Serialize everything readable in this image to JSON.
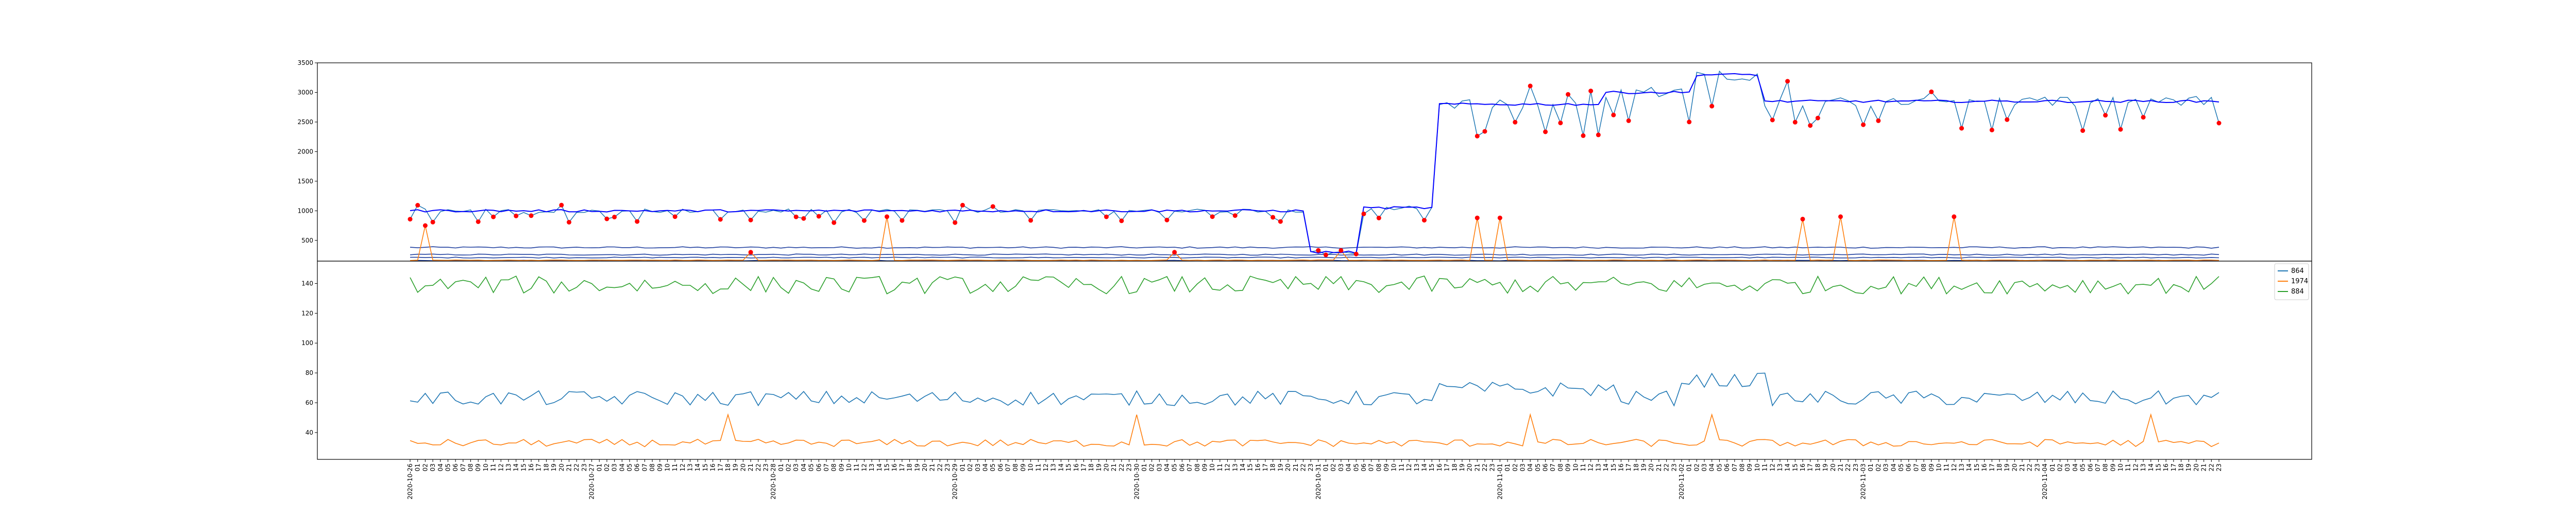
{
  "chart_data": [
    {
      "panel": "top",
      "type": "line",
      "title": "",
      "xlabel": "",
      "ylabel": "",
      "ylim": [
        150,
        3500
      ],
      "yticks": [
        500,
        1000,
        1500,
        2000,
        2500,
        3000,
        3500
      ],
      "grid": false,
      "description_of_series": "light blue raw line with red anomaly markers, dark blue smoothed level line, blue base lines near 150-400, orange line near 150 with spikes to ~700-900",
      "colors": {
        "raw": "#1f77b4",
        "smooth": "#0000ff",
        "base": "#1f3f9f",
        "orange": "#ff7f0e",
        "marker": "#ff0000"
      },
      "segments": [
        {
          "x_start": 0,
          "x_end": 119,
          "level": 1000
        },
        {
          "x_start": 119,
          "x_end": 126,
          "level": 300
        },
        {
          "x_start": 126,
          "x_end": 136,
          "level": 1050
        },
        {
          "x_start": 136,
          "x_end": 158,
          "level": 2800
        },
        {
          "x_start": 158,
          "x_end": 170,
          "level": 3000
        },
        {
          "x_start": 170,
          "x_end": 179,
          "level": 3300
        },
        {
          "x_start": 179,
          "x_end": 274,
          "level": 2850
        }
      ],
      "orange_spikes": [
        [
          2,
          750
        ],
        [
          45,
          300
        ],
        [
          63,
          900
        ],
        [
          101,
          300
        ],
        [
          123,
          330
        ],
        [
          141,
          880
        ],
        [
          144,
          880
        ],
        [
          184,
          860
        ],
        [
          189,
          900
        ],
        [
          204,
          900
        ]
      ]
    },
    {
      "panel": "bottom",
      "type": "line",
      "title": "",
      "xlabel": "",
      "ylabel": "",
      "ylim": [
        22,
        155
      ],
      "yticks": [
        40,
        60,
        80,
        100,
        120,
        140
      ],
      "grid": false,
      "legend_position": "top-right",
      "legend": [
        "864",
        "1974",
        "884"
      ],
      "series": [
        {
          "name": "864",
          "color": "#1f77b4",
          "mean": 63
        },
        {
          "name": "1974",
          "color": "#ff7f0e",
          "mean": 33
        },
        {
          "name": "884",
          "color": "#2ca02c",
          "mean": 139
        }
      ]
    }
  ],
  "x_tick_labels": [
    "2020-10-26",
    "01",
    "02",
    "03",
    "04",
    "05",
    "06",
    "07",
    "08",
    "09",
    "10",
    "11",
    "12",
    "13",
    "14",
    "15",
    "16",
    "17",
    "18",
    "19",
    "20",
    "21",
    "22",
    "23",
    "2020-10-27",
    "01",
    "02",
    "03",
    "04",
    "05",
    "06",
    "07",
    "08",
    "09",
    "10",
    "11",
    "12",
    "13",
    "14",
    "15",
    "16",
    "17",
    "18",
    "19",
    "20",
    "21",
    "22",
    "23",
    "2020-10-28",
    "01",
    "02",
    "03",
    "04",
    "05",
    "06",
    "07",
    "08",
    "09",
    "10",
    "11",
    "12",
    "13",
    "14",
    "15",
    "16",
    "17",
    "18",
    "19",
    "20",
    "21",
    "22",
    "23",
    "2020-10-29",
    "01",
    "02",
    "03",
    "04",
    "05",
    "06",
    "07",
    "08",
    "09",
    "10",
    "11",
    "12",
    "13",
    "14",
    "15",
    "16",
    "17",
    "18",
    "19",
    "20",
    "21",
    "22",
    "23",
    "2020-10-30",
    "01",
    "02",
    "03",
    "04",
    "05",
    "06",
    "07",
    "08",
    "09",
    "10",
    "11",
    "12",
    "13",
    "14",
    "15",
    "16",
    "17",
    "18",
    "19",
    "20",
    "21",
    "22",
    "23",
    "2020-10-31",
    "01",
    "02",
    "03",
    "04",
    "05",
    "06",
    "07",
    "08",
    "09",
    "10",
    "11",
    "12",
    "13",
    "14",
    "15",
    "16",
    "17",
    "18",
    "19",
    "20",
    "21",
    "22",
    "23",
    "2020-11-01",
    "01",
    "02",
    "03",
    "04",
    "05",
    "06",
    "07",
    "08",
    "09",
    "10",
    "11",
    "12",
    "13",
    "14",
    "15",
    "16",
    "17",
    "18",
    "19",
    "20",
    "21",
    "22",
    "23",
    "2020-11-02",
    "01",
    "02",
    "03",
    "04",
    "05",
    "06",
    "07",
    "08",
    "09",
    "10",
    "11",
    "12",
    "13",
    "14",
    "15",
    "16",
    "17",
    "18",
    "19",
    "20",
    "21",
    "22",
    "23",
    "2020-11-03",
    "01",
    "02",
    "03",
    "04",
    "05",
    "06",
    "07",
    "08",
    "09",
    "10",
    "11",
    "12",
    "13",
    "14",
    "15",
    "16",
    "17",
    "18",
    "19",
    "20",
    "21",
    "22",
    "23",
    "2020-11-04",
    "01",
    "02",
    "03",
    "04",
    "05",
    "06",
    "07",
    "08",
    "09",
    "10",
    "11",
    "12",
    "13",
    "14",
    "15",
    "16",
    "17",
    "18",
    "19",
    "20",
    "21",
    "22",
    "23"
  ]
}
